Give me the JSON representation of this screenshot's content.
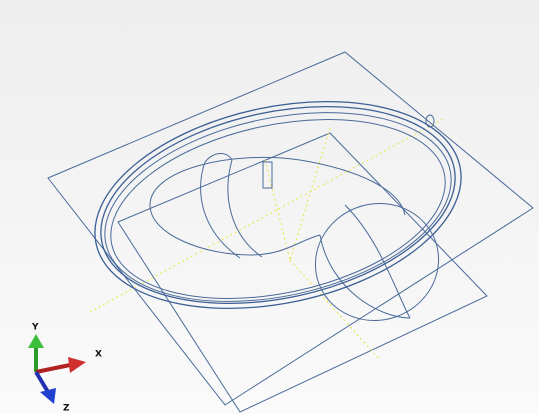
{
  "triad": {
    "y": "Y",
    "x": "X",
    "z": "Z"
  }
}
